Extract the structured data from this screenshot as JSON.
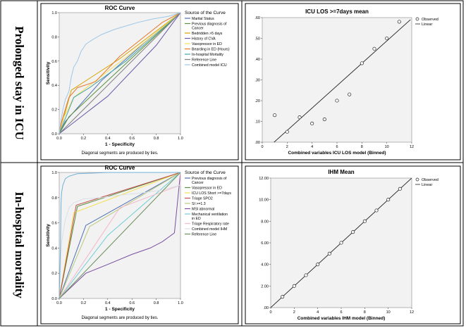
{
  "rows": [
    {
      "label": "Prolonged stay in ICU"
    },
    {
      "label": "In-hospital mortality"
    }
  ],
  "chart_data": [
    {
      "type": "line",
      "title": "ROC Curve",
      "xlabel": "1 - Specificity",
      "ylabel": "Sensitivity",
      "xlim": [
        0,
        1
      ],
      "ylim": [
        0,
        1
      ],
      "ticks": [
        "0.0",
        "0.2",
        "0.4",
        "0.6",
        "0.8",
        "1.0"
      ],
      "note": "Diagonal segments are produced by ties.",
      "legend_title": "Source of the Curve",
      "series": [
        {
          "name": "Marital Status",
          "color": "#4f6fb5",
          "points": [
            [
              0,
              0
            ],
            [
              0.05,
              0.1
            ],
            [
              0.35,
              0.44
            ],
            [
              0.7,
              0.75
            ],
            [
              1,
              1
            ]
          ]
        },
        {
          "name": "Previous diagnosis of Cancer",
          "color": "#5b8f3c",
          "points": [
            [
              0,
              0
            ],
            [
              0.08,
              0.14
            ],
            [
              1,
              1
            ]
          ]
        },
        {
          "name": "Bedridden >5 days",
          "color": "#d9a400",
          "points": [
            [
              0,
              0
            ],
            [
              0.1,
              0.36
            ],
            [
              0.5,
              0.62
            ],
            [
              1,
              1
            ]
          ]
        },
        {
          "name": "History of CVA",
          "color": "#6a5aa8",
          "points": [
            [
              0,
              0
            ],
            [
              0.4,
              0.31
            ],
            [
              0.8,
              0.73
            ],
            [
              1,
              1
            ]
          ]
        },
        {
          "name": "Vasopressor in ED",
          "color": "#f4e05a",
          "points": [
            [
              0,
              0
            ],
            [
              0.03,
              0.12
            ],
            [
              0.12,
              0.3
            ],
            [
              0.55,
              0.63
            ],
            [
              1,
              1
            ]
          ]
        },
        {
          "name": "Bearding in ED (Hours)",
          "color": "#e3782b",
          "points": [
            [
              0,
              0
            ],
            [
              0.02,
              0.1
            ],
            [
              0.08,
              0.3
            ],
            [
              0.15,
              0.38
            ],
            [
              0.3,
              0.43
            ],
            [
              0.5,
              0.64
            ],
            [
              0.7,
              0.8
            ],
            [
              0.85,
              0.92
            ],
            [
              1,
              1
            ]
          ]
        },
        {
          "name": "In-hospital Mortality",
          "color": "#4aa4a4",
          "points": [
            [
              0,
              0
            ],
            [
              0.12,
              0.3
            ],
            [
              0.25,
              0.38
            ],
            [
              0.55,
              0.6
            ],
            [
              1,
              1
            ]
          ]
        },
        {
          "name": "Reference Line",
          "color": "#808080",
          "points": [
            [
              0,
              0
            ],
            [
              1,
              1
            ]
          ]
        },
        {
          "name": "Combined model ICU",
          "color": "#9ec7e6",
          "points": [
            [
              0,
              0
            ],
            [
              0.01,
              0.08
            ],
            [
              0.03,
              0.2
            ],
            [
              0.05,
              0.28
            ],
            [
              0.08,
              0.35
            ],
            [
              0.1,
              0.47
            ],
            [
              0.12,
              0.55
            ],
            [
              0.15,
              0.6
            ],
            [
              0.18,
              0.68
            ],
            [
              0.22,
              0.74
            ],
            [
              0.28,
              0.78
            ],
            [
              0.35,
              0.82
            ],
            [
              0.45,
              0.86
            ],
            [
              0.55,
              0.89
            ],
            [
              0.65,
              0.92
            ],
            [
              0.78,
              0.95
            ],
            [
              0.9,
              0.97
            ],
            [
              1,
              1
            ]
          ]
        }
      ]
    },
    {
      "type": "scatter",
      "title": "ICU LOS >=7days mean",
      "xlabel": "Combined variables ICU LOS model (Binned)",
      "ylabel": "",
      "xlim": [
        0,
        12
      ],
      "ylim": [
        0,
        0.6
      ],
      "xticks": [
        "0",
        "2",
        "4",
        "6",
        "8",
        "10",
        "12"
      ],
      "yticks": [
        ".00",
        ".10",
        ".20",
        ".30",
        ".40",
        ".50",
        ".60"
      ],
      "legend": [
        "Observed",
        "Linear"
      ],
      "x": [
        1,
        2,
        3,
        4,
        5,
        6,
        7,
        8,
        9,
        10,
        11
      ],
      "y": [
        0.13,
        0.05,
        0.12,
        0.09,
        0.11,
        0.2,
        0.23,
        0.38,
        0.45,
        0.5,
        0.58
      ],
      "fit": [
        [
          0.3,
          -0.035
        ],
        [
          11.9,
          0.59
        ]
      ]
    },
    {
      "type": "line",
      "title": "ROC Curve",
      "xlabel": "1 - Specificity",
      "ylabel": "Sensitivity",
      "xlim": [
        0,
        1
      ],
      "ylim": [
        0,
        1
      ],
      "ticks": [
        "0.0",
        "0.2",
        "0.4",
        "0.6",
        "0.8",
        "1.0"
      ],
      "note": "Diagonal segments are produced by ties.",
      "legend_title": "Source of the Curve",
      "series": [
        {
          "name": "Previous diagnosis of Cancer",
          "color": "#4f6fb5",
          "points": [
            [
              0,
              0
            ],
            [
              0.22,
              0.58
            ],
            [
              1,
              1
            ]
          ]
        },
        {
          "name": "Vasopressor in ED",
          "color": "#5b8f3c",
          "points": [
            [
              0,
              0
            ],
            [
              0.15,
              0.73
            ],
            [
              1,
              1
            ]
          ]
        },
        {
          "name": "ICU LOS Short >=7days",
          "color": "#f4e05a",
          "points": [
            [
              0,
              0
            ],
            [
              0.12,
              0.68
            ],
            [
              1,
              1
            ]
          ]
        },
        {
          "name": "Triage SPO2",
          "color": "#c0504d",
          "points": [
            [
              0,
              0
            ],
            [
              0.14,
              0.74
            ],
            [
              1,
              1
            ]
          ]
        },
        {
          "name": "SI >=1.3",
          "color": "#b8c87c",
          "points": [
            [
              0,
              0
            ],
            [
              0.25,
              0.57
            ],
            [
              1,
              1
            ]
          ]
        },
        {
          "name": "MSI abnormal",
          "color": "#7a4ea0",
          "points": [
            [
              0,
              0
            ],
            [
              0.22,
              0.2
            ],
            [
              0.4,
              0.27
            ],
            [
              0.6,
              0.35
            ],
            [
              0.75,
              0.4
            ],
            [
              0.85,
              0.45
            ],
            [
              0.95,
              0.52
            ],
            [
              1,
              1
            ]
          ]
        },
        {
          "name": "Mechanical ventilation in ED",
          "color": "#6fcfd6",
          "points": [
            [
              0,
              0
            ],
            [
              0.4,
              0.5
            ],
            [
              1,
              1
            ]
          ]
        },
        {
          "name": "Triage Respiratory rate",
          "color": "#f4b6c8",
          "points": [
            [
              0,
              0
            ],
            [
              0.5,
              0.72
            ],
            [
              1,
              0.9
            ],
            [
              1,
              1
            ]
          ]
        },
        {
          "name": "Combined model IHM",
          "color": "#d9dfe8",
          "points": [
            [
              0,
              0
            ],
            [
              0.02,
              0.45
            ],
            [
              0.05,
              0.62
            ],
            [
              0.08,
              0.72
            ],
            [
              0.12,
              0.76
            ],
            [
              0.2,
              0.79
            ],
            [
              0.35,
              0.8
            ],
            [
              0.5,
              0.82
            ],
            [
              0.7,
              0.84
            ],
            [
              0.85,
              0.86
            ],
            [
              1,
              0.9
            ]
          ]
        },
        {
          "name": "Reference Line",
          "color": "#6b8f5a",
          "points": [
            [
              0,
              0
            ],
            [
              1,
              1
            ]
          ]
        },
        {
          "name": "",
          "color": "#6fb0d8",
          "points": [
            [
              0,
              0
            ],
            [
              0.01,
              0.4
            ],
            [
              0.015,
              0.76
            ],
            [
              0.02,
              0.84
            ],
            [
              0.03,
              0.9
            ],
            [
              0.05,
              0.95
            ],
            [
              0.08,
              0.97
            ],
            [
              0.15,
              0.99
            ],
            [
              0.4,
              1
            ],
            [
              1,
              1
            ]
          ]
        }
      ]
    },
    {
      "type": "scatter",
      "title": "IHM Mean",
      "xlabel": "Combined variables IHM model (Binned)",
      "ylabel": "",
      "xlim": [
        0,
        12
      ],
      "ylim": [
        0,
        12
      ],
      "xticks": [
        "0",
        "2",
        "4",
        "6",
        "8",
        "10",
        "12"
      ],
      "yticks": [
        ".00",
        "2.00",
        "4.00",
        "6.00",
        "8.00",
        "10.00",
        "12.00"
      ],
      "legend": [
        "Observed",
        "Linear"
      ],
      "x": [
        1,
        2,
        3,
        4,
        5,
        6,
        7,
        8,
        9,
        10,
        11
      ],
      "y": [
        1,
        2,
        3,
        4,
        5,
        6,
        7,
        8,
        9,
        10,
        11
      ],
      "fit": [
        [
          0,
          0
        ],
        [
          12,
          12
        ]
      ]
    }
  ]
}
